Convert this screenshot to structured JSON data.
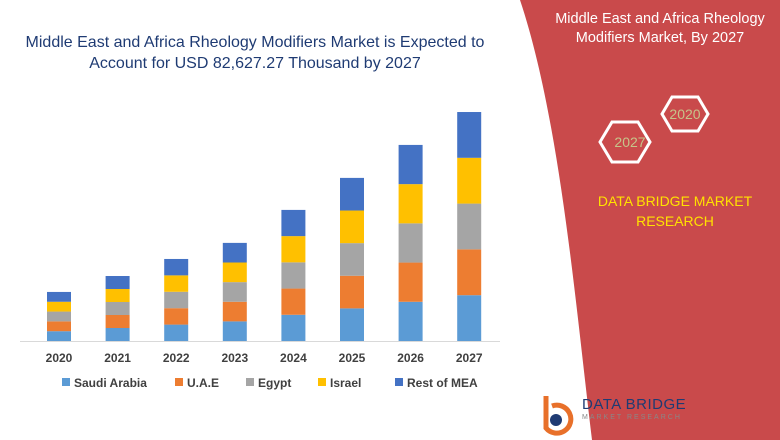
{
  "title": "Middle East and Africa Rheology Modifiers Market is Expected to Account for USD 82,627.27 Thousand by 2027",
  "panel": {
    "title": "Middle East and Africa Rheology Modifiers Market, By 2027",
    "hex_left": "2027",
    "hex_right": "2020",
    "brand": "DATA BRIDGE MARKET RESEARCH",
    "bg_color": "#c94a4b",
    "brand_color": "#ffe200"
  },
  "logo": {
    "text": "DATA BRIDGE",
    "sub": "MARKET RESEARCH"
  },
  "chart_data": {
    "type": "bar",
    "stacked": true,
    "unit": "USD Thousand (estimated)",
    "categories": [
      "2020",
      "2021",
      "2022",
      "2023",
      "2024",
      "2025",
      "2026",
      "2027"
    ],
    "series": [
      {
        "name": "Saudi Arabia",
        "color": "#5b9bd5",
        "values": [
          3540,
          4690,
          5920,
          7080,
          9460,
          11770,
          14150,
          16530
        ]
      },
      {
        "name": "U.A.E",
        "color": "#ed7d31",
        "values": [
          3540,
          4690,
          5920,
          7080,
          9460,
          11770,
          14150,
          16530
        ]
      },
      {
        "name": "Egypt",
        "color": "#a5a5a5",
        "values": [
          3540,
          4690,
          5920,
          7080,
          9460,
          11770,
          14150,
          16520
        ]
      },
      {
        "name": "Israel",
        "color": "#ffc000",
        "values": [
          3540,
          4690,
          5920,
          7080,
          9460,
          11770,
          14150,
          16520
        ]
      },
      {
        "name": "Rest of MEA",
        "color": "#4472c4",
        "values": [
          3540,
          4690,
          5920,
          7080,
          9460,
          11770,
          14150,
          16520
        ]
      }
    ],
    "legend": "bottom",
    "grid": false,
    "ylim": [
      0,
      82627.27
    ]
  }
}
